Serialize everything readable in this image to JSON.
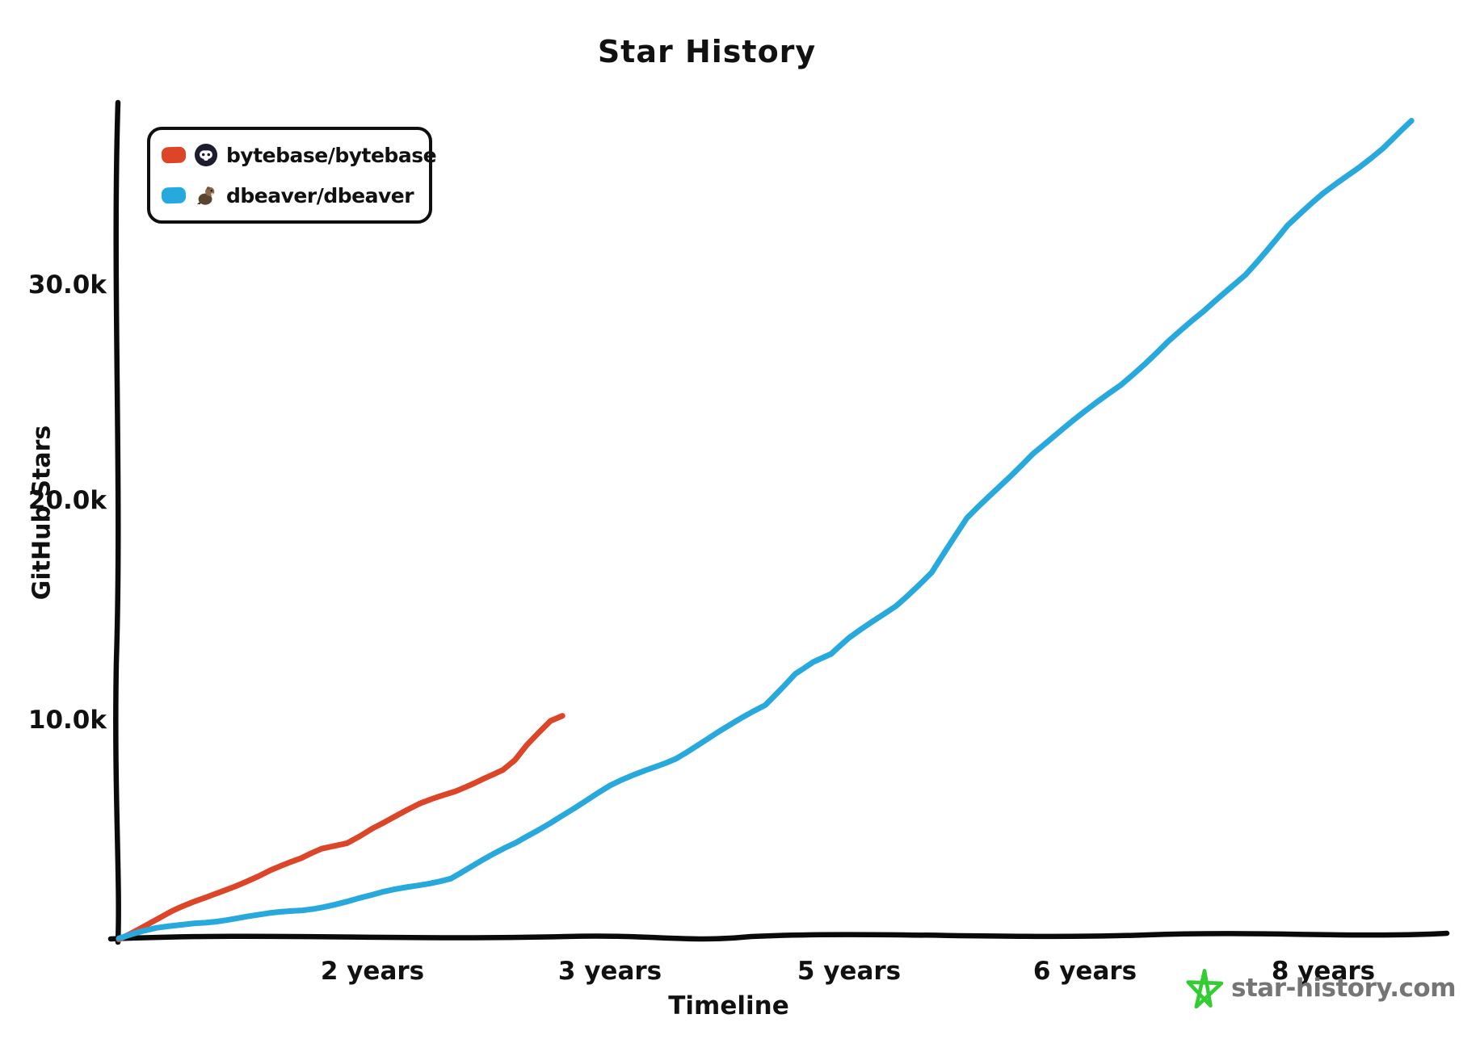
{
  "title": "Star History",
  "legend": {
    "items": [
      {
        "label": "bytebase/bytebase",
        "color": "#dd4528",
        "icon": "bytebase-avatar"
      },
      {
        "label": "dbeaver/dbeaver",
        "color": "#28a9dd",
        "icon": "dbeaver-avatar"
      }
    ]
  },
  "axes": {
    "y": {
      "title": "GitHub Stars",
      "ticks": [
        {
          "label": "30.0k",
          "value": 30000
        },
        {
          "label": "20.0k",
          "value": 20000
        },
        {
          "label": "10.0k",
          "value": 10000
        }
      ]
    },
    "x": {
      "title": "Timeline",
      "ticks": [
        {
          "label": "2 years",
          "value": 2
        },
        {
          "label": "3 years",
          "value": 3
        },
        {
          "label": "5 years",
          "value": 5
        },
        {
          "label": "6 years",
          "value": 6
        },
        {
          "label": "8 years",
          "value": 8
        }
      ]
    }
  },
  "footer": {
    "brand": "star-history.com",
    "icon": "star-icon",
    "icon_color": "#33cc33",
    "text_color": "#757575"
  },
  "chart_data": {
    "type": "line",
    "title": "Star History",
    "xlabel": "Timeline",
    "ylabel": "GitHub Stars",
    "x_unit": "years since first star",
    "x_tick_values": [
      2,
      3,
      5,
      6,
      8
    ],
    "x_ticks_evenly_spaced": true,
    "y_tick_values": [
      10000,
      20000,
      30000
    ],
    "ylim": [
      0,
      38400
    ],
    "grid": false,
    "legend_position": "top-left",
    "style": "xkcd-hand-drawn",
    "series": [
      {
        "name": "bytebase/bytebase",
        "color": "#dd4528",
        "points": [
          [
            0,
            0
          ],
          [
            0.2,
            600
          ],
          [
            0.42,
            1200
          ],
          [
            0.66,
            1750
          ],
          [
            1.0,
            2650
          ],
          [
            1.2,
            3150
          ],
          [
            1.44,
            3600
          ],
          [
            1.6,
            4050
          ],
          [
            1.8,
            4400
          ],
          [
            2.0,
            5100
          ],
          [
            2.2,
            6100
          ],
          [
            2.35,
            6750
          ],
          [
            2.47,
            7400
          ],
          [
            2.55,
            7750
          ],
          [
            2.6,
            8150
          ],
          [
            2.65,
            8800
          ],
          [
            2.7,
            9350
          ],
          [
            2.75,
            9900
          ],
          [
            2.8,
            10200
          ]
        ]
      },
      {
        "name": "dbeaver/dbeaver",
        "color": "#28a9dd",
        "points": [
          [
            0,
            0
          ],
          [
            0.3,
            400
          ],
          [
            0.6,
            740
          ],
          [
            1.1,
            1000
          ],
          [
            1.45,
            1300
          ],
          [
            1.7,
            1600
          ],
          [
            2.0,
            1930
          ],
          [
            2.33,
            2800
          ],
          [
            2.6,
            4300
          ],
          [
            2.8,
            5700
          ],
          [
            3.0,
            6930
          ],
          [
            3.3,
            7700
          ],
          [
            3.55,
            8300
          ],
          [
            4.0,
            9700
          ],
          [
            4.3,
            10700
          ],
          [
            4.55,
            12200
          ],
          [
            4.7,
            12700
          ],
          [
            4.85,
            13000
          ],
          [
            5.0,
            13700
          ],
          [
            5.2,
            15300
          ],
          [
            5.35,
            16800
          ],
          [
            5.5,
            19200
          ],
          [
            5.78,
            22300
          ],
          [
            6.0,
            24100
          ],
          [
            6.3,
            25400
          ],
          [
            6.7,
            27400
          ],
          [
            7.0,
            28700
          ],
          [
            7.35,
            30500
          ],
          [
            7.7,
            32700
          ],
          [
            8.0,
            34100
          ],
          [
            8.3,
            35400
          ],
          [
            8.5,
            36300
          ],
          [
            8.74,
            37500
          ]
        ]
      }
    ]
  }
}
